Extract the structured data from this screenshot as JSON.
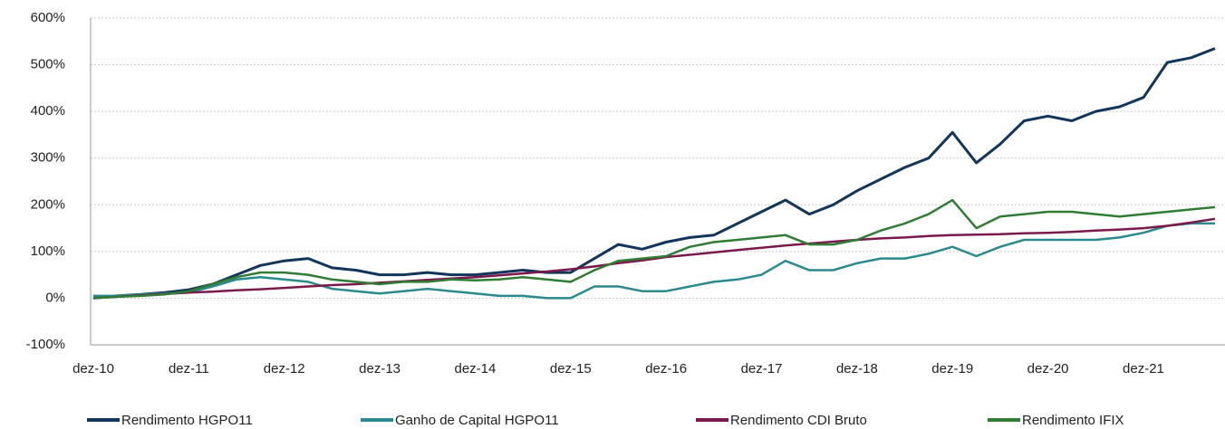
{
  "chart_data": {
    "type": "line",
    "categories": [
      "dez-10",
      null,
      null,
      null,
      "dez-11",
      null,
      null,
      null,
      "dez-12",
      null,
      null,
      null,
      "dez-13",
      null,
      null,
      null,
      "dez-14",
      null,
      null,
      null,
      "dez-15",
      null,
      null,
      null,
      "dez-16",
      null,
      null,
      null,
      "dez-17",
      null,
      null,
      null,
      "dez-18",
      null,
      null,
      null,
      "dez-19",
      null,
      null,
      null,
      "dez-20",
      null,
      null,
      null,
      "dez-21",
      null,
      null,
      null
    ],
    "ylim": [
      -100,
      600
    ],
    "yticks": [
      {
        "value": -100,
        "label": "-100%"
      },
      {
        "value": 0,
        "label": "0%"
      },
      {
        "value": 100,
        "label": "100%"
      },
      {
        "value": 200,
        "label": "200%"
      },
      {
        "value": 300,
        "label": "300%"
      },
      {
        "value": 400,
        "label": "400%"
      },
      {
        "value": 500,
        "label": "500%"
      },
      {
        "value": 600,
        "label": "600%"
      }
    ],
    "grid": true,
    "legend": "bottom",
    "series": [
      {
        "name": "Rendimento HGPO11",
        "color": "#12355b",
        "values": [
          0,
          5,
          8,
          12,
          18,
          30,
          50,
          70,
          80,
          85,
          65,
          60,
          50,
          50,
          55,
          50,
          50,
          55,
          60,
          55,
          55,
          85,
          115,
          105,
          120,
          130,
          135,
          160,
          185,
          210,
          180,
          200,
          230,
          255,
          280,
          300,
          355,
          290,
          330,
          380,
          390,
          380,
          400,
          410,
          430,
          505,
          515,
          535
        ]
      },
      {
        "name": "Ganho de Capital HGPO11",
        "color": "#2a8a8e",
        "values": [
          5,
          5,
          8,
          10,
          12,
          25,
          40,
          45,
          40,
          35,
          20,
          15,
          10,
          15,
          20,
          15,
          10,
          5,
          5,
          0,
          0,
          25,
          25,
          15,
          15,
          25,
          35,
          40,
          50,
          80,
          60,
          60,
          75,
          85,
          85,
          95,
          110,
          90,
          110,
          125,
          125,
          125,
          125,
          130,
          140,
          155,
          160,
          160
        ]
      },
      {
        "name": "Rendimento CDI Bruto",
        "color": "#7a1a4c",
        "values": [
          0,
          3,
          6,
          9,
          12,
          14,
          17,
          19,
          22,
          25,
          28,
          30,
          33,
          36,
          39,
          42,
          45,
          49,
          53,
          57,
          62,
          68,
          75,
          81,
          88,
          93,
          98,
          103,
          108,
          113,
          117,
          121,
          125,
          128,
          130,
          133,
          135,
          136,
          137,
          139,
          140,
          142,
          145,
          147,
          150,
          155,
          162,
          170
        ]
      },
      {
        "name": "Rendimento IFIX",
        "color": "#2f7d34",
        "values": [
          0,
          3,
          5,
          8,
          15,
          30,
          45,
          55,
          55,
          50,
          40,
          35,
          30,
          35,
          35,
          40,
          38,
          40,
          45,
          40,
          35,
          60,
          80,
          85,
          90,
          110,
          120,
          125,
          130,
          135,
          115,
          115,
          125,
          145,
          160,
          180,
          210,
          150,
          175,
          180,
          185,
          185,
          180,
          175,
          180,
          185,
          190,
          195
        ]
      }
    ]
  }
}
